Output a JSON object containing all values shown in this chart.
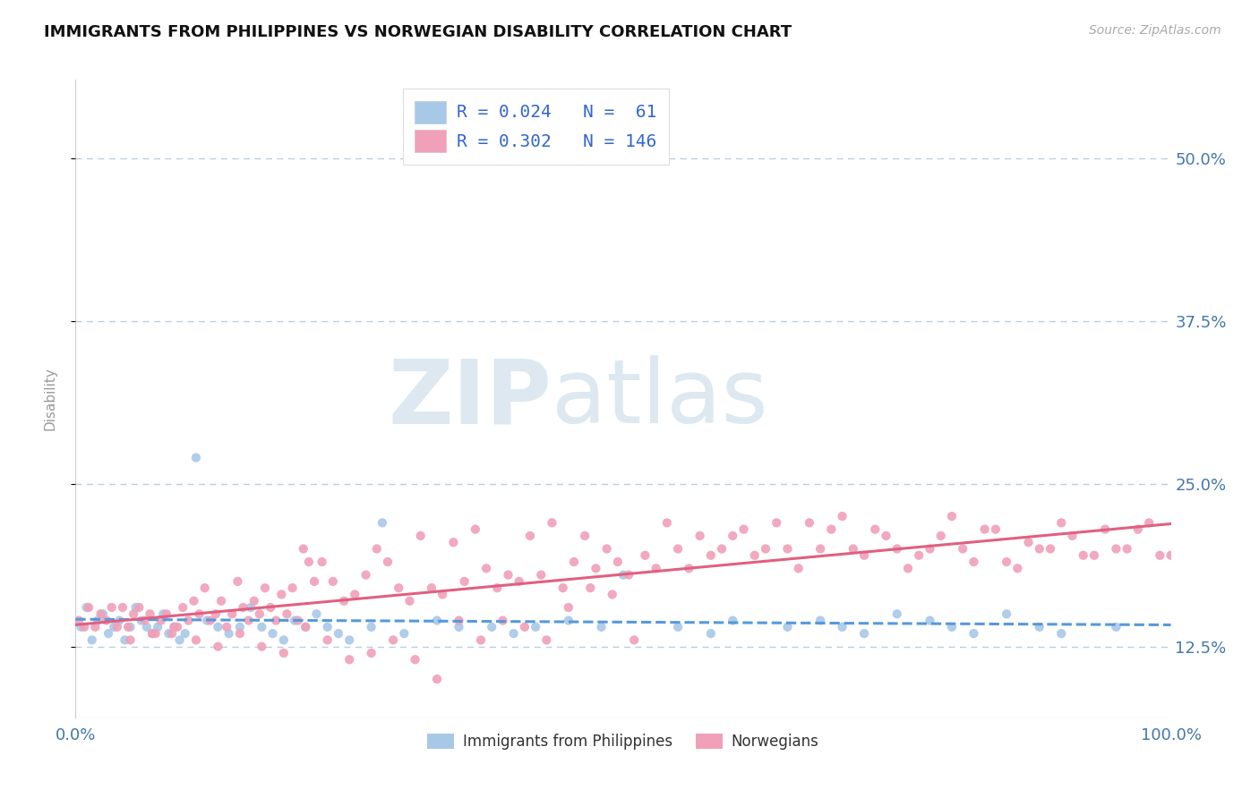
{
  "title": "IMMIGRANTS FROM PHILIPPINES VS NORWEGIAN DISABILITY CORRELATION CHART",
  "source": "Source: ZipAtlas.com",
  "ylabel": "Disability",
  "series": [
    {
      "label": "Immigrants from Philippines",
      "R": 0.024,
      "N": 61,
      "marker_color": "#a8c8e8",
      "line_color": "#5599dd",
      "line_style": "--",
      "x": [
        0.5,
        1.0,
        1.5,
        2.0,
        2.5,
        3.0,
        3.5,
        4.0,
        4.5,
        5.0,
        5.5,
        6.0,
        6.5,
        7.0,
        7.5,
        8.0,
        8.5,
        9.0,
        9.5,
        10.0,
        11.0,
        12.0,
        13.0,
        14.0,
        15.0,
        16.0,
        17.0,
        18.0,
        19.0,
        20.0,
        21.0,
        22.0,
        23.0,
        24.0,
        25.0,
        27.0,
        28.0,
        30.0,
        33.0,
        35.0,
        38.0,
        40.0,
        42.0,
        45.0,
        48.0,
        50.0,
        55.0,
        58.0,
        60.0,
        65.0,
        68.0,
        70.0,
        72.0,
        75.0,
        78.0,
        80.0,
        82.0,
        85.0,
        88.0,
        90.0,
        95.0
      ],
      "y": [
        0.14,
        0.155,
        0.13,
        0.145,
        0.15,
        0.135,
        0.14,
        0.145,
        0.13,
        0.14,
        0.155,
        0.145,
        0.14,
        0.135,
        0.14,
        0.15,
        0.135,
        0.14,
        0.13,
        0.135,
        0.27,
        0.145,
        0.14,
        0.135,
        0.14,
        0.155,
        0.14,
        0.135,
        0.13,
        0.145,
        0.14,
        0.15,
        0.14,
        0.135,
        0.13,
        0.14,
        0.22,
        0.135,
        0.145,
        0.14,
        0.14,
        0.135,
        0.14,
        0.145,
        0.14,
        0.18,
        0.14,
        0.135,
        0.145,
        0.14,
        0.145,
        0.14,
        0.135,
        0.15,
        0.145,
        0.14,
        0.135,
        0.15,
        0.14,
        0.135,
        0.14
      ]
    },
    {
      "label": "Norwegians",
      "R": 0.302,
      "N": 146,
      "marker_color": "#f0a0b8",
      "line_color": "#e06080",
      "line_style": "-",
      "x": [
        0.3,
        0.8,
        1.2,
        1.8,
        2.3,
        2.8,
        3.3,
        3.8,
        4.3,
        4.8,
        5.3,
        5.8,
        6.3,
        6.8,
        7.3,
        7.8,
        8.3,
        8.8,
        9.3,
        9.8,
        10.3,
        10.8,
        11.3,
        11.8,
        12.3,
        12.8,
        13.3,
        13.8,
        14.3,
        14.8,
        15.3,
        15.8,
        16.3,
        16.8,
        17.3,
        17.8,
        18.3,
        18.8,
        19.3,
        19.8,
        20.3,
        20.8,
        21.3,
        21.8,
        22.5,
        23.5,
        24.5,
        25.5,
        26.5,
        27.5,
        28.5,
        29.5,
        30.5,
        31.5,
        32.5,
        33.5,
        34.5,
        35.5,
        36.5,
        37.5,
        38.5,
        39.5,
        40.5,
        41.5,
        42.5,
        43.5,
        44.5,
        45.5,
        46.5,
        47.5,
        48.5,
        49.5,
        50.5,
        52.0,
        54.0,
        56.0,
        58.0,
        60.0,
        62.0,
        64.0,
        66.0,
        68.0,
        70.0,
        72.0,
        74.0,
        76.0,
        78.0,
        80.0,
        82.0,
        84.0,
        86.0,
        88.0,
        90.0,
        92.0,
        94.0,
        96.0,
        98.0,
        100.0,
        55.0,
        57.0,
        59.0,
        61.0,
        63.0,
        65.0,
        67.0,
        69.0,
        71.0,
        73.0,
        75.0,
        77.0,
        79.0,
        81.0,
        83.0,
        85.0,
        87.0,
        89.0,
        91.0,
        93.0,
        95.0,
        97.0,
        99.0,
        53.0,
        51.0,
        49.0,
        47.0,
        45.0,
        43.0,
        41.0,
        39.0,
        37.0,
        35.0,
        33.0,
        31.0,
        29.0,
        27.0,
        25.0,
        23.0,
        21.0,
        19.0,
        17.0,
        15.0,
        13.0,
        11.0,
        9.0,
        7.0,
        5.0
      ],
      "y": [
        0.145,
        0.14,
        0.155,
        0.14,
        0.15,
        0.145,
        0.155,
        0.14,
        0.155,
        0.14,
        0.15,
        0.155,
        0.145,
        0.15,
        0.135,
        0.145,
        0.15,
        0.135,
        0.14,
        0.155,
        0.145,
        0.16,
        0.15,
        0.17,
        0.145,
        0.15,
        0.16,
        0.14,
        0.15,
        0.175,
        0.155,
        0.145,
        0.16,
        0.15,
        0.17,
        0.155,
        0.145,
        0.165,
        0.15,
        0.17,
        0.145,
        0.2,
        0.19,
        0.175,
        0.19,
        0.175,
        0.16,
        0.165,
        0.18,
        0.2,
        0.19,
        0.17,
        0.16,
        0.21,
        0.17,
        0.165,
        0.205,
        0.175,
        0.215,
        0.185,
        0.17,
        0.18,
        0.175,
        0.21,
        0.18,
        0.22,
        0.17,
        0.19,
        0.21,
        0.185,
        0.2,
        0.19,
        0.18,
        0.195,
        0.22,
        0.185,
        0.195,
        0.21,
        0.195,
        0.22,
        0.185,
        0.2,
        0.225,
        0.195,
        0.21,
        0.185,
        0.2,
        0.225,
        0.19,
        0.215,
        0.185,
        0.2,
        0.22,
        0.195,
        0.215,
        0.2,
        0.22,
        0.195,
        0.2,
        0.21,
        0.2,
        0.215,
        0.2,
        0.2,
        0.22,
        0.215,
        0.2,
        0.215,
        0.2,
        0.195,
        0.21,
        0.2,
        0.215,
        0.19,
        0.205,
        0.2,
        0.21,
        0.195,
        0.2,
        0.215,
        0.195,
        0.185,
        0.13,
        0.165,
        0.17,
        0.155,
        0.13,
        0.14,
        0.145,
        0.13,
        0.145,
        0.1,
        0.115,
        0.13,
        0.12,
        0.115,
        0.13,
        0.14,
        0.12,
        0.125,
        0.135,
        0.125,
        0.13,
        0.14,
        0.135,
        0.13
      ]
    }
  ],
  "xlim": [
    0,
    100
  ],
  "ylim": [
    0.07,
    0.56
  ],
  "yticks": [
    0.125,
    0.25,
    0.375,
    0.5
  ],
  "ytick_labels": [
    "12.5%",
    "25.0%",
    "37.5%",
    "50.0%"
  ],
  "xtick_labels": [
    "0.0%",
    "100.0%"
  ],
  "grid_color": "#b8cfe0",
  "background_color": "#ffffff",
  "watermark_zip": "ZIP",
  "watermark_atlas": "atlas",
  "title_fontsize": 13,
  "axis_tick_color": "#4477aa",
  "legend_text_color": "#3366cc"
}
